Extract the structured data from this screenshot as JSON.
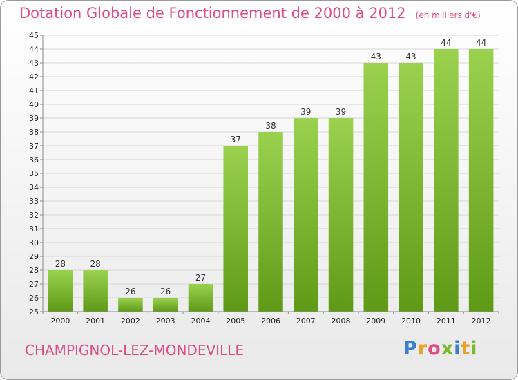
{
  "header": {
    "title": "Dotation Globale de Fonctionnement de 2000 à 2012",
    "unit": "(en milliers d'€)"
  },
  "footer": {
    "place": "CHAMPIGNOL-LEZ-MONDEVILLE",
    "logo_letters": [
      "P",
      "r",
      "o",
      "x",
      "i",
      "t",
      "i"
    ],
    "logo_colors": [
      "#3b7fd0",
      "#e8a22a",
      "#e04a85",
      "#7cb82f",
      "#3b7fd0",
      "#e8a22a",
      "#7cb82f"
    ]
  },
  "colors": {
    "title": "#e04a85",
    "bar_top": "#9ad24f",
    "bar_bottom": "#5f9a16"
  },
  "chart_data": {
    "type": "bar",
    "title": "Dotation Globale de Fonctionnement de 2000 à 2012",
    "subtitle": "(en milliers d'€)",
    "xlabel": "",
    "ylabel": "",
    "categories": [
      "2000",
      "2001",
      "2002",
      "2003",
      "2004",
      "2005",
      "2006",
      "2007",
      "2008",
      "2009",
      "2010",
      "2011",
      "2012"
    ],
    "values": [
      28,
      28,
      26,
      26,
      27,
      37,
      38,
      39,
      39,
      43,
      43,
      44,
      44
    ],
    "ylim": [
      25,
      45
    ],
    "yticks": [
      25,
      26,
      27,
      28,
      29,
      30,
      31,
      32,
      33,
      34,
      35,
      36,
      37,
      38,
      39,
      40,
      41,
      42,
      43,
      44,
      45
    ],
    "grid": true,
    "data_labels": true,
    "legend": "none"
  }
}
